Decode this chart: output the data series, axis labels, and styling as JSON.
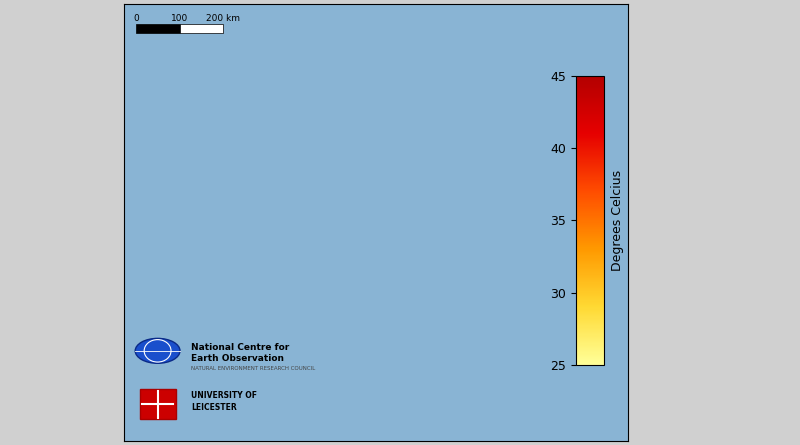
{
  "figure_width": 8.0,
  "figure_height": 4.45,
  "dpi": 100,
  "bg_color": "#c8d8e8",
  "map_bg": "#a8c4d8",
  "outer_bg": "#d8d8d8",
  "colorbar_label": "Degrees Celcius",
  "colorbar_ticks": [
    25,
    30,
    35,
    40,
    45
  ],
  "colorbar_vmin": 25,
  "colorbar_vmax": 45,
  "scalebar_label": "0     100    200 km",
  "nceo_text": "National Centre for\nEarth Observation",
  "nceo_sub": "NATURAL ENVIRONMENT RESEARCH COUNCIL",
  "leic_text": "UNIVERSITY OF\nLEICESTER"
}
